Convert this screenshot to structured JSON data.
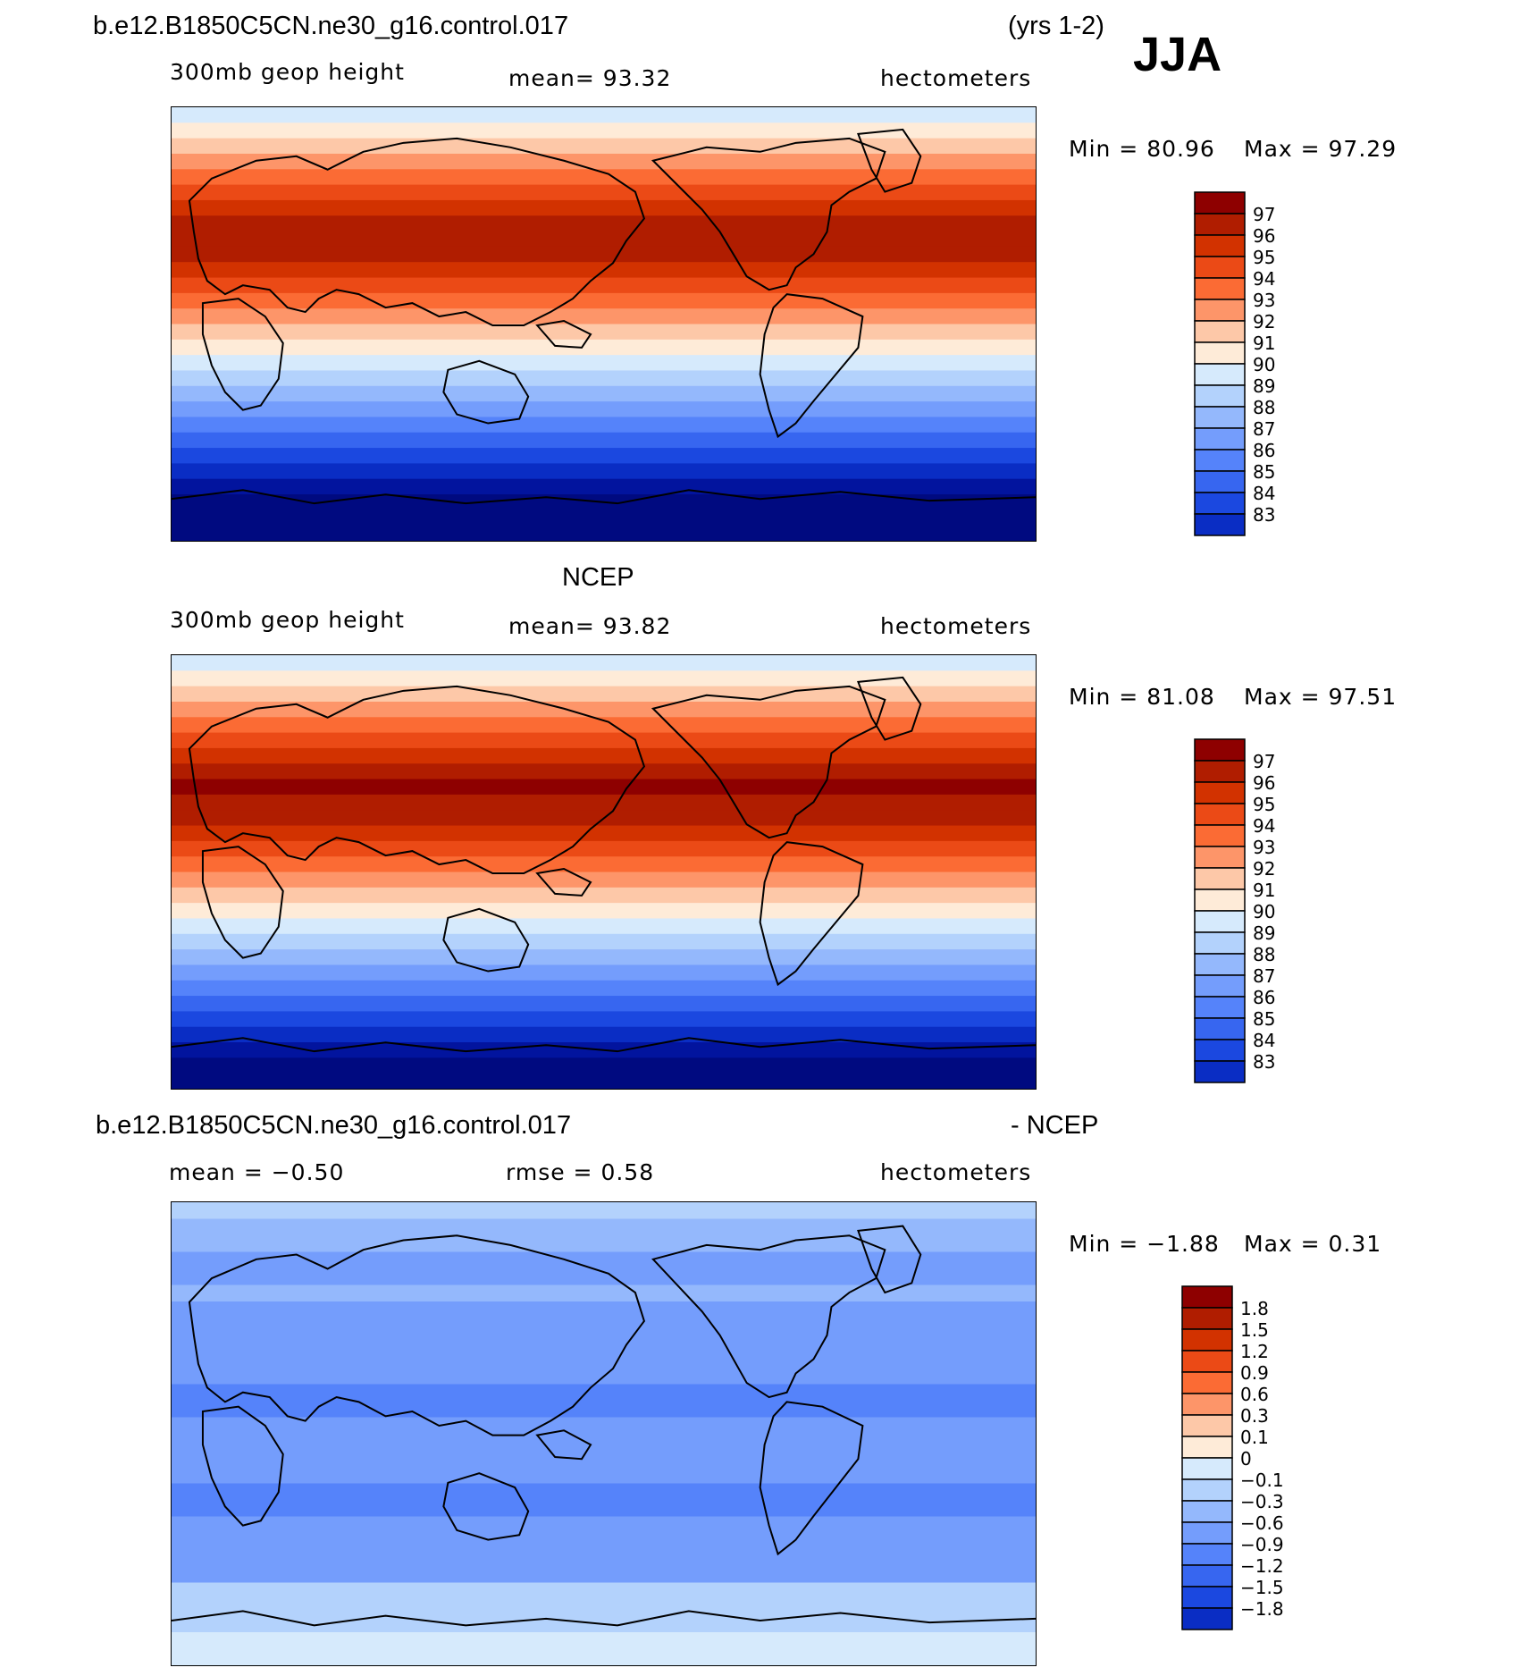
{
  "season": "JJA",
  "years": "(yrs 1-2)",
  "colors": {
    "scale_warm": [
      "#8e0000",
      "#b01d00",
      "#d23200",
      "#eb4a16",
      "#fb6b34",
      "#fd9569",
      "#fdc8a8",
      "#feebd8"
    ],
    "scale_cool": [
      "#d6eafc",
      "#b3d2fc",
      "#94b8fc",
      "#749dfc",
      "#5583fa",
      "#3766f0",
      "#1b48e0",
      "#0a2dc4",
      "#02149e",
      "#000a80"
    ],
    "coastline": "#000000"
  },
  "panels": [
    {
      "case": "b.e12.B1850C5CN.ne30_g16.control.017",
      "variable": "300mb geop height",
      "stat1": "mean=   93.32",
      "units": "hectometers",
      "minmax_min": "Min =   80.96",
      "minmax_max": "Max =   97.29",
      "levels": [
        "97",
        "96",
        "95",
        "94",
        "93",
        "92",
        "91",
        "90",
        "89",
        "88",
        "87",
        "86",
        "85",
        "84",
        "83"
      ],
      "stripe_colors": [
        "#d6eafc",
        "#feebd8",
        "#fdc8a8",
        "#fd9569",
        "#fb6b34",
        "#eb4a16",
        "#d23200",
        "#b01d00",
        "#b01d00",
        "#b01d00",
        "#d23200",
        "#eb4a16",
        "#fb6b34",
        "#fd9569",
        "#fdc8a8",
        "#feebd8",
        "#d6eafc",
        "#b3d2fc",
        "#94b8fc",
        "#749dfc",
        "#5583fa",
        "#3766f0",
        "#1b48e0",
        "#0a2dc4",
        "#02149e",
        "#000a80",
        "#000a80",
        "#000a80"
      ]
    },
    {
      "case": "NCEP",
      "variable": "300mb geop height",
      "stat1": "mean=   93.82",
      "units": "hectometers",
      "minmax_min": "Min =   81.08",
      "minmax_max": "Max =   97.51",
      "levels": [
        "97",
        "96",
        "95",
        "94",
        "93",
        "92",
        "91",
        "90",
        "89",
        "88",
        "87",
        "86",
        "85",
        "84",
        "83"
      ],
      "stripe_colors": [
        "#d6eafc",
        "#feebd8",
        "#fdc8a8",
        "#fd9569",
        "#fb6b34",
        "#eb4a16",
        "#d23200",
        "#b01d00",
        "#8e0000",
        "#b01d00",
        "#b01d00",
        "#d23200",
        "#eb4a16",
        "#fb6b34",
        "#fd9569",
        "#fdc8a8",
        "#feebd8",
        "#d6eafc",
        "#b3d2fc",
        "#94b8fc",
        "#749dfc",
        "#5583fa",
        "#3766f0",
        "#1b48e0",
        "#0a2dc4",
        "#02149e",
        "#000a80",
        "#000a80"
      ]
    },
    {
      "case": "b.e12.B1850C5CN.ne30_g16.control.017",
      "case_suffix": "- NCEP",
      "stat1": "mean =   −0.50",
      "stat2": "rmse =    0.58",
      "units": "hectometers",
      "minmax_min": "Min =   −1.88",
      "minmax_max": "Max =    0.31",
      "levels": [
        "1.8",
        "1.5",
        "1.2",
        "0.9",
        "0.6",
        "0.3",
        "0.1",
        "0",
        "−0.1",
        "−0.3",
        "−0.6",
        "−0.9",
        "−1.2",
        "−1.5",
        "−1.8"
      ],
      "stripe_colors": [
        "#b3d2fc",
        "#94b8fc",
        "#94b8fc",
        "#749dfc",
        "#749dfc",
        "#94b8fc",
        "#749dfc",
        "#749dfc",
        "#749dfc",
        "#749dfc",
        "#749dfc",
        "#5583fa",
        "#5583fa",
        "#749dfc",
        "#749dfc",
        "#749dfc",
        "#749dfc",
        "#5583fa",
        "#5583fa",
        "#749dfc",
        "#749dfc",
        "#749dfc",
        "#749dfc",
        "#b3d2fc",
        "#b3d2fc",
        "#b3d2fc",
        "#d6eafc",
        "#d6eafc"
      ]
    }
  ]
}
